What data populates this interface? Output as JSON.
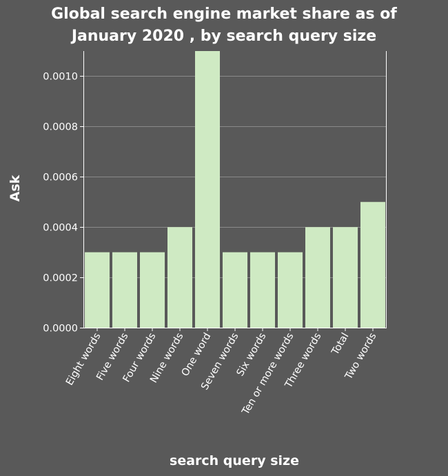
{
  "chart_data": {
    "type": "bar",
    "title": "Global search engine market share as of January 2020 , by search query size",
    "title_lines": [
      "Global search engine market share as of",
      "January 2020 , by search query size"
    ],
    "xlabel": "search query size",
    "ylabel": "Ask",
    "categories": [
      "Eight words",
      "Five words",
      "Four words",
      "Nine words",
      "One word",
      "Seven words",
      "Six words",
      "Ten or more words",
      "Three words",
      "Total",
      "Two words"
    ],
    "values": [
      0.0003,
      0.0003,
      0.0003,
      0.0004,
      0.0011,
      0.0003,
      0.0003,
      0.0003,
      0.0004,
      0.0004,
      0.0005
    ],
    "ylim": [
      0,
      0.0011
    ],
    "yticks": [
      0,
      0.0002,
      0.0004,
      0.0006,
      0.0008,
      0.001
    ],
    "ytick_labels": [
      "0.0000",
      "0.0002",
      "0.0004",
      "0.0006",
      "0.0008",
      "0.0010"
    ],
    "grid": true,
    "colors": {
      "background": "#595959",
      "bar": "#cfeac3",
      "grid": "#8a8a8a",
      "text": "#ffffff"
    }
  }
}
